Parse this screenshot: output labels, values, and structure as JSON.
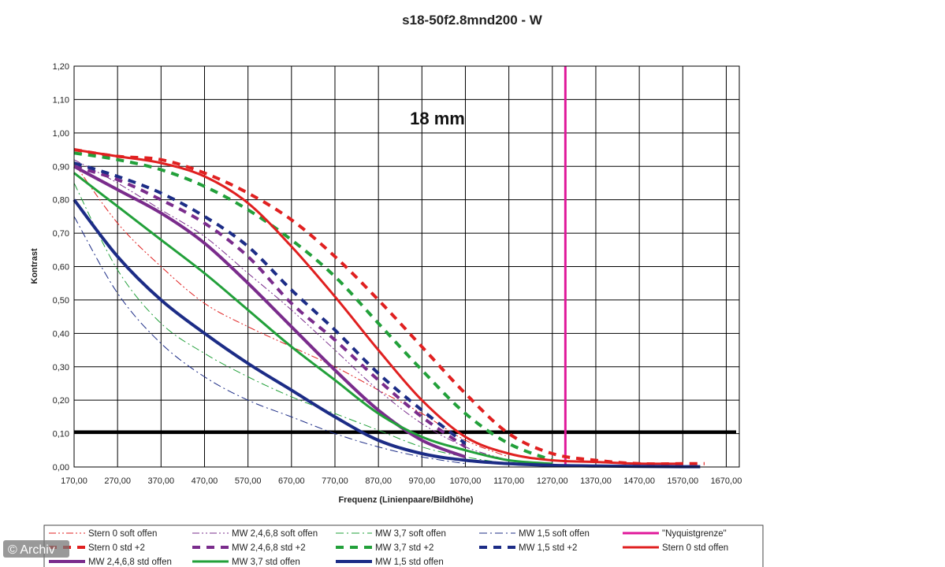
{
  "chart_data": {
    "type": "line",
    "title": "s18-50f2.8mnd200 - W",
    "annotation": "18 mm",
    "xlabel": "Frequenz (Linienpaare/Bildhöhe)",
    "ylabel": "Kontrast",
    "xlim": [
      170,
      1700
    ],
    "ylim": [
      0,
      1.2
    ],
    "x_ticks": [
      "170,00",
      "270,00",
      "370,00",
      "470,00",
      "570,00",
      "670,00",
      "770,00",
      "870,00",
      "970,00",
      "1070,00",
      "1170,00",
      "1270,00",
      "1370,00",
      "1470,00",
      "1570,00",
      "1670,00"
    ],
    "y_ticks": [
      "0,00",
      "0,10",
      "0,20",
      "0,30",
      "0,40",
      "0,50",
      "0,60",
      "0,70",
      "0,80",
      "0,90",
      "1,00",
      "1,10",
      "1,20"
    ],
    "grid": true,
    "legend_position": "bottom",
    "reference_line": {
      "y": 0.105,
      "color": "#000000"
    },
    "nyquist": {
      "name": "\"Nyquistgrenze\"",
      "x": 1300,
      "color": "#e0189a"
    },
    "series": [
      {
        "name": "Stern 0 soft offen",
        "color": "#e02020",
        "style": "dashdotdot",
        "width": 1,
        "x": [
          170,
          270,
          370,
          470,
          570,
          670,
          770,
          870,
          970,
          1070,
          1170
        ],
        "y": [
          0.91,
          0.73,
          0.6,
          0.49,
          0.42,
          0.36,
          0.3,
          0.23,
          0.16,
          0.08,
          0.03
        ]
      },
      {
        "name": "MW 2,4,6,8 soft offen",
        "color": "#7a2c8c",
        "style": "dashdotdot",
        "width": 1,
        "x": [
          170,
          270,
          370,
          470,
          570,
          670,
          770,
          870,
          970,
          1070,
          1170
        ],
        "y": [
          0.92,
          0.85,
          0.77,
          0.69,
          0.58,
          0.47,
          0.35,
          0.23,
          0.13,
          0.06,
          0.02
        ]
      },
      {
        "name": "MW 3,7 soft offen",
        "color": "#22a03a",
        "style": "dashdot",
        "width": 1,
        "x": [
          170,
          270,
          370,
          470,
          570,
          670,
          770,
          870,
          970,
          1070,
          1170
        ],
        "y": [
          0.85,
          0.59,
          0.43,
          0.34,
          0.27,
          0.21,
          0.16,
          0.11,
          0.06,
          0.03,
          0.01
        ]
      },
      {
        "name": "MW 1,5 soft offen",
        "color": "#1c2c86",
        "style": "dashdot",
        "width": 1,
        "x": [
          170,
          270,
          370,
          470,
          570,
          670,
          770,
          870,
          970,
          1070
        ],
        "y": [
          0.75,
          0.52,
          0.37,
          0.27,
          0.2,
          0.15,
          0.1,
          0.06,
          0.03,
          0.01
        ]
      },
      {
        "name": "\"Nyquistgrenze\"",
        "color": "#e0189a",
        "style": "solid",
        "width": 3,
        "vertical_at": 1300
      },
      {
        "name": "Stern 0 std +2",
        "color": "#e02020",
        "style": "dash",
        "width": 4,
        "x": [
          170,
          270,
          370,
          470,
          570,
          670,
          770,
          870,
          970,
          1070,
          1170,
          1270,
          1370,
          1470,
          1570,
          1620
        ],
        "y": [
          0.95,
          0.93,
          0.92,
          0.88,
          0.82,
          0.74,
          0.63,
          0.5,
          0.36,
          0.22,
          0.1,
          0.04,
          0.02,
          0.01,
          0.01,
          0.01
        ]
      },
      {
        "name": "MW 2,4,6,8 std +2",
        "color": "#7a2c8c",
        "style": "dash",
        "width": 4,
        "x": [
          170,
          270,
          370,
          470,
          570,
          670,
          770,
          870,
          970,
          1070
        ],
        "y": [
          0.9,
          0.86,
          0.8,
          0.73,
          0.63,
          0.49,
          0.38,
          0.26,
          0.15,
          0.06
        ]
      },
      {
        "name": "MW 3,7 std +2",
        "color": "#22a03a",
        "style": "dash",
        "width": 4,
        "x": [
          170,
          270,
          370,
          470,
          570,
          670,
          770,
          870,
          970,
          1070,
          1170,
          1270
        ],
        "y": [
          0.94,
          0.92,
          0.89,
          0.84,
          0.77,
          0.68,
          0.57,
          0.43,
          0.29,
          0.16,
          0.07,
          0.02
        ]
      },
      {
        "name": "MW 1,5 std +2",
        "color": "#1c2c86",
        "style": "dash",
        "width": 4,
        "x": [
          170,
          270,
          370,
          470,
          570,
          670,
          770,
          870,
          970,
          1070
        ],
        "y": [
          0.91,
          0.87,
          0.82,
          0.75,
          0.66,
          0.53,
          0.41,
          0.28,
          0.17,
          0.07
        ]
      },
      {
        "name": "Stern 0 std offen",
        "color": "#e02020",
        "style": "solid",
        "width": 3,
        "x": [
          170,
          270,
          370,
          470,
          570,
          670,
          770,
          870,
          970,
          1070,
          1170,
          1270,
          1370,
          1470,
          1570
        ],
        "y": [
          0.95,
          0.93,
          0.91,
          0.87,
          0.79,
          0.66,
          0.51,
          0.35,
          0.2,
          0.09,
          0.04,
          0.02,
          0.015,
          0.01,
          0.01
        ]
      },
      {
        "name": "MW 2,4,6,8 std offen",
        "color": "#7a2c8c",
        "style": "solid",
        "width": 4,
        "x": [
          170,
          270,
          370,
          470,
          570,
          670,
          770,
          870,
          970,
          1070
        ],
        "y": [
          0.9,
          0.83,
          0.76,
          0.67,
          0.55,
          0.42,
          0.29,
          0.17,
          0.08,
          0.03
        ]
      },
      {
        "name": "MW 3,7 std offen",
        "color": "#22a03a",
        "style": "solid",
        "width": 3,
        "x": [
          170,
          270,
          370,
          470,
          570,
          670,
          770,
          870,
          970,
          1070,
          1170,
          1270
        ],
        "y": [
          0.88,
          0.78,
          0.68,
          0.58,
          0.47,
          0.36,
          0.26,
          0.16,
          0.09,
          0.05,
          0.02,
          0.01
        ]
      },
      {
        "name": "MW 1,5 std offen",
        "color": "#1c2c86",
        "style": "solid",
        "width": 4,
        "x": [
          170,
          270,
          370,
          470,
          570,
          670,
          770,
          870,
          970,
          1070,
          1170,
          1270,
          1370,
          1470,
          1570,
          1610
        ],
        "y": [
          0.8,
          0.63,
          0.5,
          0.4,
          0.31,
          0.23,
          0.15,
          0.08,
          0.04,
          0.02,
          0.01,
          0.005,
          0.003,
          0.002,
          0.001,
          0.001
        ]
      }
    ]
  },
  "watermark": "© Archiv"
}
